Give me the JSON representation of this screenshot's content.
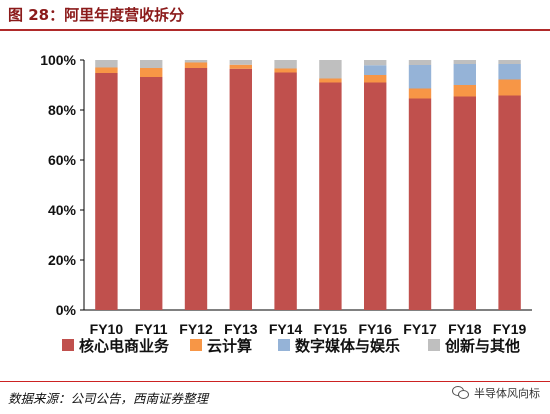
{
  "header": {
    "title": "图 28：阿里年度营收拆分"
  },
  "footer": {
    "source": "数据来源：公司公告，西南证券整理",
    "badge": "半导体风向标"
  },
  "colors": {
    "title": "#8b1a1a",
    "rule": "#b02a2a"
  },
  "chart_data": {
    "type": "bar",
    "stacked": true,
    "categories": [
      "FY10",
      "FY11",
      "FY12",
      "FY13",
      "FY14",
      "FY15",
      "FY16",
      "FY17",
      "FY18",
      "FY19"
    ],
    "ylim": [
      0,
      100
    ],
    "yticks": [
      "0%",
      "20%",
      "40%",
      "60%",
      "80%",
      "100%"
    ],
    "grid": false,
    "legend_position": "bottom",
    "series": [
      {
        "name": "核心电商业务",
        "color": "#c0504d",
        "values": [
          94.8,
          93.2,
          96.8,
          96.5,
          95.0,
          91.0,
          91.0,
          84.6,
          85.4,
          85.8
        ]
      },
      {
        "name": "云计算",
        "color": "#f79646",
        "values": [
          2.2,
          3.6,
          2.2,
          1.6,
          1.6,
          1.6,
          3.0,
          4.0,
          4.6,
          6.4
        ]
      },
      {
        "name": "数字媒体与娱乐",
        "color": "#95b3d7",
        "values": [
          0,
          0,
          0,
          0,
          0,
          0,
          3.9,
          9.4,
          8.4,
          6.2
        ]
      },
      {
        "name": "创新与其他",
        "color": "#bfbfbf",
        "values": [
          3.0,
          3.2,
          1.0,
          1.9,
          3.4,
          7.4,
          2.1,
          2.0,
          1.6,
          1.6
        ]
      }
    ]
  }
}
